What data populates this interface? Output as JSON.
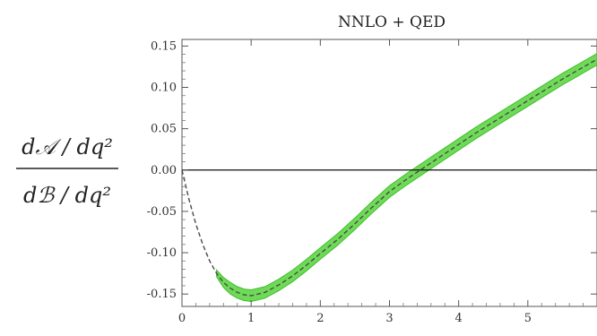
{
  "chart_data": {
    "type": "line",
    "title": "NNLO + QED",
    "xlabel": "",
    "ylabel_numerator": "d𝒜 / dq²",
    "ylabel_denominator": "dℬ / dq²",
    "xlim": [
      0,
      6
    ],
    "ylim": [
      -0.165,
      0.158
    ],
    "x_ticks": [
      0,
      1,
      2,
      3,
      4,
      5
    ],
    "y_ticks": [
      -0.15,
      -0.1,
      -0.05,
      0.0,
      0.05,
      0.1,
      0.15
    ],
    "y_tick_labels": [
      "-0.15",
      "-0.10",
      "-0.05",
      "0.00",
      "0.05",
      "0.10",
      "0.15"
    ],
    "zero_line": true,
    "grid": false,
    "band_start_x": 0.5,
    "series": [
      {
        "x": [
          0.0,
          0.1,
          0.2,
          0.3,
          0.4,
          0.5,
          0.6,
          0.7,
          0.8,
          0.9,
          1.0,
          1.2,
          1.4,
          1.6,
          1.8,
          2.0,
          2.25,
          2.5,
          2.75,
          3.0,
          3.25,
          3.5,
          3.75,
          4.0,
          4.25,
          4.5,
          4.75,
          5.0,
          5.25,
          5.5,
          5.75,
          6.0
        ],
        "y": [
          0.0,
          -0.035,
          -0.065,
          -0.09,
          -0.11,
          -0.125,
          -0.136,
          -0.143,
          -0.148,
          -0.151,
          -0.152,
          -0.148,
          -0.139,
          -0.128,
          -0.115,
          -0.101,
          -0.084,
          -0.065,
          -0.045,
          -0.026,
          -0.011,
          0.003,
          0.017,
          0.031,
          0.045,
          0.058,
          0.071,
          0.084,
          0.097,
          0.11,
          0.122,
          0.134
        ],
        "uncertainty": [
          0.0,
          0.0,
          0.0,
          0.0,
          0.0,
          0.004,
          0.006,
          0.007,
          0.007,
          0.007,
          0.007,
          0.007,
          0.007,
          0.007,
          0.007,
          0.007,
          0.007,
          0.007,
          0.007,
          0.007,
          0.007,
          0.007,
          0.007,
          0.007,
          0.007,
          0.007,
          0.007,
          0.007,
          0.007,
          0.007,
          0.007,
          0.007
        ]
      }
    ]
  }
}
